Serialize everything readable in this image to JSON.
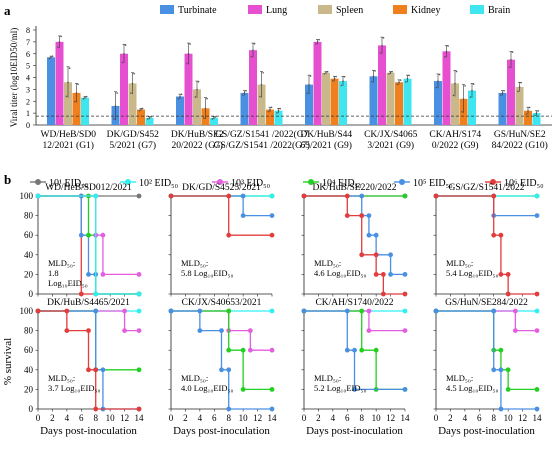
{
  "chart_data": [
    {
      "panel": "a",
      "type": "bar",
      "ylabel": "Viral titer (log10EID50/ml)",
      "ylim": [
        0,
        8
      ],
      "yticks": [
        "0",
        "1",
        "2",
        "3",
        "4",
        "5",
        "6",
        "7",
        "8"
      ],
      "series_names": [
        "Turbinate",
        "Lung",
        "Spleen",
        "Kidney",
        "Brain"
      ],
      "colors": [
        "#4a90e2",
        "#e64fd0",
        "#c8b88a",
        "#f07f1e",
        "#3fe6f0"
      ],
      "categories": [
        "WD/HeB/SD0 12/2021 (G1)",
        "DK/GD/S452 5/2021 (G7)",
        "DK/HuB/SE2 20/2022 (G7)",
        "GS/GZ/S1541 /2022(G7)",
        "DK/HuB/S44 65/2021 (G9)",
        "CK/JX/S4065 3/2021 (G9)",
        "CK/AH/S174 0/2022 (G9)",
        "GS/HuN/SE2 84/2022 (G10)"
      ],
      "values": [
        [
          5.7,
          7.0,
          3.6,
          2.7,
          2.3
        ],
        [
          1.6,
          6.0,
          3.5,
          1.3,
          0.6
        ],
        [
          2.4,
          6.0,
          3.0,
          1.4,
          0.6
        ],
        [
          2.7,
          6.3,
          3.4,
          1.3,
          1.2
        ],
        [
          3.4,
          7.0,
          4.4,
          3.9,
          3.7
        ],
        [
          4.1,
          6.7,
          4.4,
          3.6,
          3.9
        ],
        [
          3.7,
          6.2,
          3.5,
          2.2,
          2.9
        ],
        [
          2.7,
          5.5,
          3.2,
          1.2,
          1.0
        ]
      ],
      "errors": [
        [
          0.1,
          0.5,
          1.3,
          0.8,
          0.1
        ],
        [
          1.2,
          0.8,
          0.9,
          0.1,
          0.1
        ],
        [
          0.2,
          0.9,
          0.7,
          0.9,
          0.1
        ],
        [
          0.2,
          0.6,
          1.1,
          0.2,
          0.2
        ],
        [
          0.8,
          0.2,
          0.1,
          0.2,
          0.4
        ],
        [
          0.5,
          0.7,
          0.1,
          0.2,
          0.3
        ],
        [
          0.6,
          0.5,
          1.1,
          1.2,
          0.6
        ],
        [
          0.2,
          0.7,
          0.4,
          0.3,
          0.2
        ]
      ],
      "dashed_line_y": 0.75
    },
    {
      "panel": "b",
      "type": "line",
      "ylabel": "% survival",
      "xlabel": "Days post-inoculation",
      "xlim": [
        0,
        14
      ],
      "ylim": [
        0,
        100
      ],
      "xticks": [
        "0",
        "2",
        "4",
        "6",
        "8",
        "10",
        "12",
        "14"
      ],
      "yticks": [
        "0",
        "20",
        "40",
        "60",
        "80",
        "100"
      ],
      "dose_legend": [
        "10¹ EID₅₀",
        "10² EID₅₀",
        "10³ EID₅₀",
        "10⁴ EID₅₀",
        "10⁵ EID₅₀",
        "10⁶ EID₅₀"
      ],
      "dose_colors": [
        "#777777",
        "#2ff0f0",
        "#e45ee0",
        "#22d022",
        "#4a90e2",
        "#e23c3c"
      ],
      "panels": [
        {
          "title": "WD/HeB/SD012/2021",
          "mld_line1": "MLD₅₀:",
          "mld_line2": "1.8",
          "mld_line3": "Log₁₀EID₅₀",
          "curves": [
            {
              "dose": 0,
              "x": [
                0,
                14
              ],
              "y": [
                100,
                100
              ]
            },
            {
              "dose": 5,
              "x": [
                0,
                6,
                6,
                14
              ],
              "y": [
                100,
                100,
                0,
                0
              ]
            },
            {
              "dose": 4,
              "x": [
                0,
                6,
                6,
                7,
                7,
                8,
                8,
                14
              ],
              "y": [
                100,
                100,
                60,
                60,
                20,
                20,
                0,
                0
              ]
            },
            {
              "dose": 3,
              "x": [
                0,
                7,
                7,
                8,
                8,
                14
              ],
              "y": [
                100,
                100,
                60,
                60,
                0,
                0
              ]
            },
            {
              "dose": 2,
              "x": [
                0,
                8,
                8,
                9,
                9,
                14
              ],
              "y": [
                100,
                100,
                60,
                60,
                20,
                20
              ]
            },
            {
              "dose": 1,
              "x": [
                0,
                8,
                8,
                14
              ],
              "y": [
                100,
                100,
                0,
                0
              ]
            }
          ]
        },
        {
          "title": "DK/GD/S4525/2021",
          "mld_line1": "MLD₅₀:",
          "mld_line2": "5.8 Log₁₀EID₅₀",
          "mld_line3": "",
          "curves": [
            {
              "dose": 3,
              "x": [
                0,
                14
              ],
              "y": [
                100,
                100
              ]
            },
            {
              "dose": 1,
              "x": [
                0,
                14
              ],
              "y": [
                100,
                100
              ]
            },
            {
              "dose": 4,
              "x": [
                0,
                10,
                10,
                14
              ],
              "y": [
                100,
                100,
                80,
                80
              ]
            },
            {
              "dose": 5,
              "x": [
                0,
                8,
                8,
                14
              ],
              "y": [
                100,
                100,
                60,
                60
              ]
            }
          ]
        },
        {
          "title": "DK/HuB/SE220/2022",
          "mld_line1": "MLD₅₀:",
          "mld_line2": "4.6 Log₁₀EID₅₀",
          "mld_line3": "",
          "curves": [
            {
              "dose": 2,
              "x": [
                0,
                14
              ],
              "y": [
                100,
                100
              ]
            },
            {
              "dose": 3,
              "x": [
                0,
                10,
                10,
                14
              ],
              "y": [
                100,
                100,
                100,
                100
              ]
            },
            {
              "dose": 4,
              "x": [
                0,
                8,
                8,
                9,
                9,
                10,
                10,
                12,
                12,
                14
              ],
              "y": [
                100,
                100,
                80,
                80,
                60,
                60,
                40,
                40,
                20,
                20
              ]
            },
            {
              "dose": 5,
              "x": [
                0,
                6,
                6,
                8,
                8,
                10,
                10,
                11,
                11,
                14
              ],
              "y": [
                100,
                100,
                80,
                80,
                40,
                40,
                20,
                20,
                0,
                0
              ]
            }
          ]
        },
        {
          "title": "GS/GZ/S1541/2022",
          "mld_line1": "MLD₅₀:",
          "mld_line2": "5.4 Log₁₀EID₅₀",
          "mld_line3": "",
          "curves": [
            {
              "dose": 3,
              "x": [
                0,
                14
              ],
              "y": [
                100,
                100
              ]
            },
            {
              "dose": 1,
              "x": [
                0,
                14
              ],
              "y": [
                100,
                100
              ]
            },
            {
              "dose": 4,
              "x": [
                0,
                8,
                8,
                14
              ],
              "y": [
                100,
                100,
                80,
                80
              ]
            },
            {
              "dose": 5,
              "x": [
                0,
                8,
                8,
                9,
                9,
                10,
                10,
                14
              ],
              "y": [
                100,
                100,
                60,
                60,
                20,
                20,
                0,
                0
              ]
            }
          ]
        },
        {
          "title": "DK/HuB/S4465/2021",
          "mld_line1": "MLD₅₀:",
          "mld_line2": "3.7 Log₁₀EID₅₀",
          "mld_line3": "",
          "curves": [
            {
              "dose": 1,
              "x": [
                0,
                14
              ],
              "y": [
                100,
                100
              ]
            },
            {
              "dose": 2,
              "x": [
                0,
                12,
                12,
                14
              ],
              "y": [
                100,
                100,
                80,
                80
              ]
            },
            {
              "dose": 3,
              "x": [
                0,
                8,
                8,
                14
              ],
              "y": [
                100,
                100,
                40,
                40
              ]
            },
            {
              "dose": 4,
              "x": [
                0,
                8,
                8,
                9,
                9,
                14
              ],
              "y": [
                100,
                100,
                40,
                40,
                0,
                0
              ]
            },
            {
              "dose": 5,
              "x": [
                0,
                4,
                4,
                7,
                7,
                8,
                8,
                14
              ],
              "y": [
                100,
                100,
                80,
                80,
                40,
                40,
                0,
                0
              ]
            }
          ]
        },
        {
          "title": "CK/JX/S40653/2021",
          "mld_line1": "MLD₅₀:",
          "mld_line2": "4.0 Log₁₀EID₅₀",
          "mld_line3": "",
          "curves": [
            {
              "dose": 1,
              "x": [
                0,
                14
              ],
              "y": [
                100,
                100
              ]
            },
            {
              "dose": 2,
              "x": [
                0,
                8,
                8,
                11,
                11,
                14
              ],
              "y": [
                100,
                100,
                80,
                80,
                60,
                60
              ]
            },
            {
              "dose": 3,
              "x": [
                0,
                8,
                8,
                10,
                10,
                14
              ],
              "y": [
                100,
                100,
                60,
                60,
                20,
                20
              ]
            },
            {
              "dose": 4,
              "x": [
                0,
                4,
                4,
                7,
                7,
                8,
                8,
                14
              ],
              "y": [
                100,
                100,
                80,
                80,
                40,
                40,
                0,
                0
              ]
            }
          ]
        },
        {
          "title": "CK/AH/S1740/2022",
          "mld_line1": "MLD₅₀:",
          "mld_line2": "5.2 Log₁₀EID₅₀",
          "mld_line3": "",
          "curves": [
            {
              "dose": 1,
              "x": [
                0,
                14
              ],
              "y": [
                100,
                100
              ]
            },
            {
              "dose": 2,
              "x": [
                0,
                9,
                9,
                14
              ],
              "y": [
                100,
                100,
                80,
                80
              ]
            },
            {
              "dose": 3,
              "x": [
                0,
                8,
                8,
                10,
                10,
                14
              ],
              "y": [
                100,
                100,
                60,
                60,
                20,
                20
              ]
            },
            {
              "dose": 4,
              "x": [
                0,
                6,
                6,
                7,
                7,
                14
              ],
              "y": [
                100,
                100,
                60,
                60,
                20,
                20
              ]
            }
          ]
        },
        {
          "title": "GS/HuN/SE284/2022",
          "mld_line1": "MLD₅₀:",
          "mld_line2": "4.5 Log₁₀EID₅₀",
          "mld_line3": "",
          "curves": [
            {
              "dose": 1,
              "x": [
                0,
                14
              ],
              "y": [
                100,
                100
              ]
            },
            {
              "dose": 2,
              "x": [
                0,
                11,
                11,
                14
              ],
              "y": [
                100,
                100,
                80,
                80
              ]
            },
            {
              "dose": 3,
              "x": [
                0,
                8,
                8,
                9,
                9,
                10,
                10,
                14
              ],
              "y": [
                100,
                100,
                60,
                60,
                40,
                40,
                20,
                20
              ]
            },
            {
              "dose": 4,
              "x": [
                0,
                8,
                8,
                9,
                9,
                14
              ],
              "y": [
                100,
                100,
                40,
                40,
                0,
                0
              ]
            }
          ]
        }
      ]
    }
  ],
  "labels": {
    "panel_a": "a",
    "panel_b": "b"
  }
}
